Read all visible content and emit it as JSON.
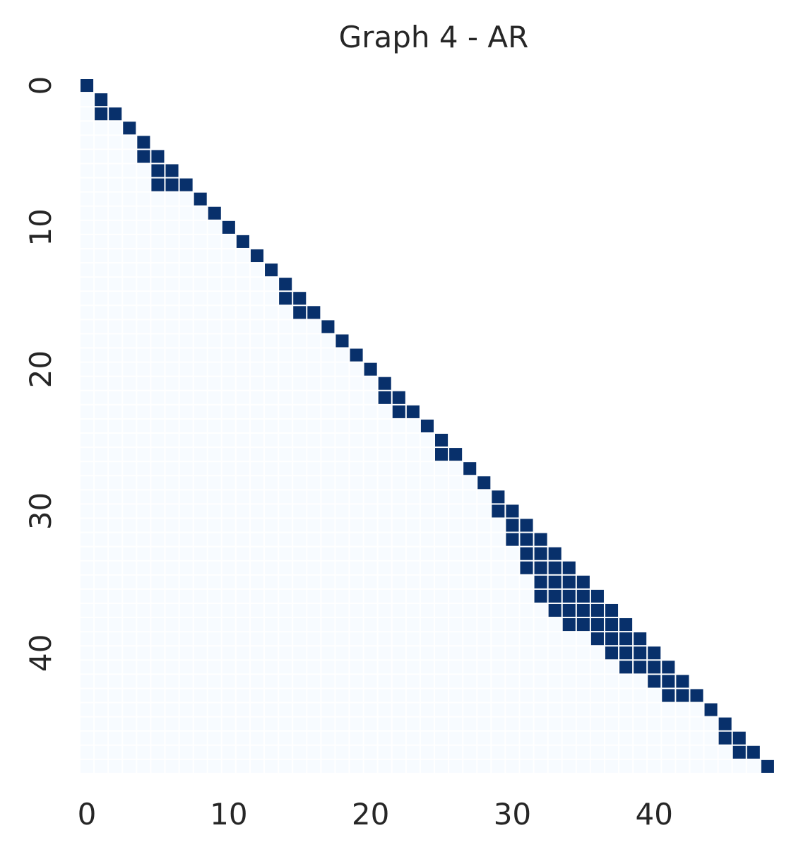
{
  "chart_data": {
    "type": "heatmap",
    "title": "Graph 4 - AR",
    "size": 49,
    "mask": "lower-triangle-including-diagonal",
    "colors": {
      "on": "#08306b",
      "off": "#f7fbff"
    },
    "x_ticks": [
      0,
      10,
      20,
      30,
      40
    ],
    "y_ticks": [
      0,
      10,
      20,
      30,
      40
    ],
    "on_cells": [
      [
        0,
        0
      ],
      [
        1,
        1
      ],
      [
        2,
        1
      ],
      [
        2,
        2
      ],
      [
        3,
        3
      ],
      [
        4,
        4
      ],
      [
        5,
        4
      ],
      [
        5,
        5
      ],
      [
        6,
        5
      ],
      [
        6,
        6
      ],
      [
        7,
        5
      ],
      [
        7,
        6
      ],
      [
        7,
        7
      ],
      [
        8,
        8
      ],
      [
        9,
        9
      ],
      [
        10,
        10
      ],
      [
        11,
        11
      ],
      [
        12,
        12
      ],
      [
        13,
        13
      ],
      [
        14,
        14
      ],
      [
        15,
        14
      ],
      [
        15,
        15
      ],
      [
        16,
        15
      ],
      [
        16,
        16
      ],
      [
        17,
        17
      ],
      [
        18,
        18
      ],
      [
        19,
        19
      ],
      [
        20,
        20
      ],
      [
        21,
        21
      ],
      [
        22,
        21
      ],
      [
        22,
        22
      ],
      [
        23,
        22
      ],
      [
        23,
        23
      ],
      [
        24,
        24
      ],
      [
        25,
        25
      ],
      [
        26,
        25
      ],
      [
        26,
        26
      ],
      [
        27,
        27
      ],
      [
        28,
        28
      ],
      [
        29,
        29
      ],
      [
        30,
        29
      ],
      [
        30,
        30
      ],
      [
        31,
        30
      ],
      [
        31,
        31
      ],
      [
        32,
        30
      ],
      [
        32,
        31
      ],
      [
        32,
        32
      ],
      [
        33,
        31
      ],
      [
        33,
        32
      ],
      [
        33,
        33
      ],
      [
        34,
        31
      ],
      [
        34,
        32
      ],
      [
        34,
        33
      ],
      [
        34,
        34
      ],
      [
        35,
        32
      ],
      [
        35,
        33
      ],
      [
        35,
        34
      ],
      [
        35,
        35
      ],
      [
        36,
        32
      ],
      [
        36,
        33
      ],
      [
        36,
        34
      ],
      [
        36,
        35
      ],
      [
        36,
        36
      ],
      [
        37,
        33
      ],
      [
        37,
        34
      ],
      [
        37,
        35
      ],
      [
        37,
        36
      ],
      [
        37,
        37
      ],
      [
        38,
        34
      ],
      [
        38,
        35
      ],
      [
        38,
        36
      ],
      [
        38,
        37
      ],
      [
        38,
        38
      ],
      [
        39,
        36
      ],
      [
        39,
        37
      ],
      [
        39,
        38
      ],
      [
        39,
        39
      ],
      [
        40,
        37
      ],
      [
        40,
        38
      ],
      [
        40,
        39
      ],
      [
        40,
        40
      ],
      [
        41,
        38
      ],
      [
        41,
        39
      ],
      [
        41,
        40
      ],
      [
        41,
        41
      ],
      [
        42,
        40
      ],
      [
        42,
        41
      ],
      [
        42,
        42
      ],
      [
        43,
        41
      ],
      [
        43,
        42
      ],
      [
        43,
        43
      ],
      [
        44,
        44
      ],
      [
        45,
        45
      ],
      [
        46,
        45
      ],
      [
        46,
        46
      ],
      [
        47,
        46
      ],
      [
        47,
        47
      ],
      [
        48,
        48
      ]
    ]
  }
}
